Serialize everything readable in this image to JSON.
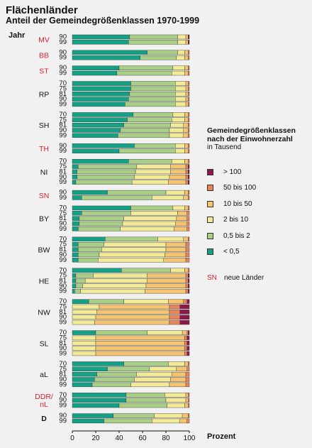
{
  "title": "Flächenländer",
  "subtitle": "Anteil der Gemeindegrößenklassen 1970-1999",
  "chart_data": {
    "type": "bar",
    "orientation": "horizontal",
    "stacked": true,
    "y_axis_title": "Jahr",
    "xlabel": "Prozent",
    "xlim": [
      0,
      100
    ],
    "x_ticks": [
      "0",
      "20",
      "40",
      "60",
      "80",
      "100"
    ],
    "legend": {
      "title": "Gemeindegrößenklassen nach der Einwohnerzahl",
      "unit": "in Tausend",
      "placement": "right",
      "items": [
        {
          "label": "> 100",
          "color": "#8b1a4a"
        },
        {
          "label": "50 bis 100",
          "color": "#e8845a"
        },
        {
          "label": "10 bis 50",
          "color": "#f6c46e"
        },
        {
          "label": "2 bis 10",
          "color": "#f3ea95"
        },
        {
          "label": "0,5 bis 2",
          "color": "#a9cf86"
        },
        {
          "label": "< 0,5",
          "color": "#13a085"
        }
      ],
      "note_code": "SN",
      "note_text": "neue Länder"
    },
    "series_order": [
      "< 0,5",
      "0,5 bis 2",
      "2 bis 10",
      "10 bis 50",
      "50 bis 100",
      "> 100"
    ],
    "groups": [
      {
        "label": "MV",
        "new": true,
        "bars": [
          {
            "year": "90",
            "values": [
              49,
              41,
              7,
              2,
              0,
              1
            ]
          },
          {
            "year": "99",
            "values": [
              48,
              42,
              7,
              2,
              0,
              1
            ]
          }
        ]
      },
      {
        "label": "BB",
        "new": true,
        "bars": [
          {
            "year": "90",
            "values": [
              64,
              26,
              6,
              3,
              1,
              0
            ]
          },
          {
            "year": "99",
            "values": [
              58,
              31,
              7,
              3,
              1,
              0
            ]
          }
        ]
      },
      {
        "label": "ST",
        "new": true,
        "bars": [
          {
            "year": "90",
            "values": [
              40,
              46,
              10,
              3,
              1,
              0
            ]
          },
          {
            "year": "99",
            "values": [
              38,
              47,
              11,
              3,
              1,
              0
            ]
          }
        ]
      },
      {
        "label": "RP",
        "new": false,
        "bars": [
          {
            "year": "70",
            "values": [
              50,
              38,
              9,
              2,
              1,
              0
            ]
          },
          {
            "year": "75",
            "values": [
              50,
              38,
              9,
              2,
              1,
              0
            ]
          },
          {
            "year": "81",
            "values": [
              49,
              39,
              9,
              2,
              1,
              0
            ]
          },
          {
            "year": "90",
            "values": [
              48,
              40,
              9,
              2,
              1,
              0
            ]
          },
          {
            "year": "99",
            "values": [
              45,
              43,
              9,
              2,
              1,
              0
            ]
          }
        ]
      },
      {
        "label": "SH",
        "new": false,
        "bars": [
          {
            "year": "70",
            "values": [
              52,
              34,
              10,
              3,
              1,
              0
            ]
          },
          {
            "year": "75",
            "values": [
              47,
              38,
              11,
              3,
              1,
              0
            ]
          },
          {
            "year": "81",
            "values": [
              44,
              40,
              11,
              4,
              1,
              0
            ]
          },
          {
            "year": "90",
            "values": [
              41,
              42,
              12,
              4,
              1,
              0
            ]
          },
          {
            "year": "99",
            "values": [
              39,
              44,
              12,
              4,
              1,
              0
            ]
          }
        ]
      },
      {
        "label": "TH",
        "new": true,
        "bars": [
          {
            "year": "90",
            "values": [
              53,
              35,
              8,
              3,
              1,
              0
            ]
          },
          {
            "year": "99",
            "values": [
              40,
              48,
              8,
              3,
              1,
              0
            ]
          }
        ]
      },
      {
        "label": "NI",
        "new": false,
        "bars": [
          {
            "year": "70",
            "values": [
              48,
              37,
              11,
              3,
              1,
              0
            ]
          },
          {
            "year": "75",
            "values": [
              5,
              50,
              29,
              13,
              2,
              1
            ]
          },
          {
            "year": "81",
            "values": [
              4,
              50,
              30,
              13,
              2,
              1
            ]
          },
          {
            "year": "90",
            "values": [
              4,
              49,
              30,
              14,
              2,
              1
            ]
          },
          {
            "year": "99",
            "values": [
              3,
              48,
              31,
              15,
              2,
              1
            ]
          }
        ]
      },
      {
        "label": "SN",
        "new": true,
        "bars": [
          {
            "year": "90",
            "values": [
              30,
              50,
              16,
              3,
              1,
              0
            ]
          },
          {
            "year": "99",
            "values": [
              8,
              60,
              27,
              4,
              1,
              0
            ]
          }
        ]
      },
      {
        "label": "BY",
        "new": false,
        "bars": [
          {
            "year": "70",
            "values": [
              50,
              36,
              10,
              3,
              1,
              0
            ]
          },
          {
            "year": "75",
            "values": [
              8,
              42,
              40,
              8,
              2,
              0
            ]
          },
          {
            "year": "81",
            "values": [
              6,
              38,
              45,
              9,
              2,
              0
            ]
          },
          {
            "year": "90",
            "values": [
              6,
              37,
              45,
              10,
              2,
              0
            ]
          },
          {
            "year": "99",
            "values": [
              5,
              36,
              46,
              11,
              2,
              0
            ]
          }
        ]
      },
      {
        "label": "BW",
        "new": false,
        "bars": [
          {
            "year": "70",
            "values": [
              28,
              45,
              22,
              4,
              1,
              0
            ]
          },
          {
            "year": "75",
            "values": [
              5,
              22,
              53,
              17,
              3,
              0
            ]
          },
          {
            "year": "81",
            "values": [
              5,
              20,
              55,
              17,
              3,
              0
            ]
          },
          {
            "year": "90",
            "values": [
              5,
              18,
              56,
              18,
              3,
              0
            ]
          },
          {
            "year": "99",
            "values": [
              5,
              17,
              56,
              19,
              3,
              0
            ]
          }
        ]
      },
      {
        "label": "HE",
        "new": false,
        "bars": [
          {
            "year": "70",
            "values": [
              42,
              42,
              12,
              3,
              1,
              0
            ]
          },
          {
            "year": "75",
            "values": [
              3,
              15,
              46,
              33,
              2,
              1
            ]
          },
          {
            "year": "81",
            "values": [
              3,
              8,
              53,
              33,
              2,
              1
            ]
          },
          {
            "year": "90",
            "values": [
              3,
              6,
              54,
              34,
              2,
              1
            ]
          },
          {
            "year": "99",
            "values": [
              2,
              5,
              55,
              35,
              2,
              1
            ]
          }
        ]
      },
      {
        "label": "NW",
        "new": false,
        "bars": [
          {
            "year": "70",
            "values": [
              14,
              30,
              38,
              13,
              3,
              2
            ]
          },
          {
            "year": "75",
            "values": [
              0,
              0,
              23,
              60,
              9,
              8
            ]
          },
          {
            "year": "81",
            "values": [
              0,
              0,
              21,
              62,
              9,
              8
            ]
          },
          {
            "year": "90",
            "values": [
              0,
              0,
              20,
              63,
              9,
              8
            ]
          },
          {
            "year": "99",
            "values": [
              0,
              0,
              19,
              64,
              9,
              8
            ]
          }
        ]
      },
      {
        "label": "SL",
        "new": false,
        "bars": [
          {
            "year": "70",
            "values": [
              20,
              44,
              30,
              4,
              1,
              1
            ]
          },
          {
            "year": "75",
            "values": [
              0,
              0,
              20,
              76,
              2,
              2
            ]
          },
          {
            "year": "81",
            "values": [
              0,
              0,
              20,
              76,
              2,
              2
            ]
          },
          {
            "year": "90",
            "values": [
              0,
              0,
              20,
              76,
              2,
              2
            ]
          },
          {
            "year": "99",
            "values": [
              0,
              0,
              20,
              76,
              2,
              2
            ]
          }
        ]
      },
      {
        "label": "aL",
        "new": false,
        "bars": [
          {
            "year": "70",
            "values": [
              44,
              38,
              14,
              3,
              1,
              0
            ]
          },
          {
            "year": "75",
            "values": [
              30,
              36,
              23,
              9,
              2,
              0
            ]
          },
          {
            "year": "81",
            "values": [
              21,
              34,
              30,
              12,
              3,
              0
            ]
          },
          {
            "year": "90",
            "values": [
              19,
              34,
              31,
              13,
              3,
              0
            ]
          },
          {
            "year": "99",
            "values": [
              17,
              33,
              33,
              14,
              3,
              0
            ]
          }
        ]
      },
      {
        "label": "DDR/ nL",
        "new": true,
        "bars": [
          {
            "year": "70",
            "values": [
              46,
              33,
              18,
              2,
              1,
              0
            ]
          },
          {
            "year": "90",
            "values": [
              46,
              34,
              17,
              2,
              1,
              0
            ]
          },
          {
            "year": "99",
            "values": [
              40,
              41,
              15,
              3,
              1,
              0
            ]
          }
        ]
      },
      {
        "label": "D",
        "new": false,
        "bars": [
          {
            "year": "90",
            "values": [
              35,
              35,
              24,
              5,
              1,
              0
            ]
          },
          {
            "year": "99",
            "values": [
              27,
              41,
              24,
              6,
              2,
              0
            ]
          }
        ]
      }
    ]
  }
}
